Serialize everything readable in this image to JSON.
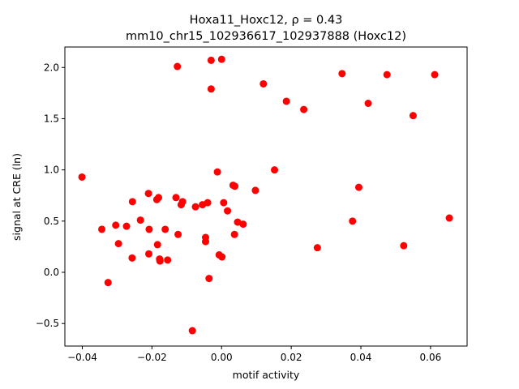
{
  "chart_data": {
    "type": "scatter",
    "title_line1": "Hoxa11_Hoxc12, ρ = 0.43",
    "title_line2": "mm10_chr15_102936617_102937888 (Hoxc12)",
    "xlabel": "motif activity",
    "ylabel": "signal at CRE (ln)",
    "xlim": [
      -0.045,
      0.0705
    ],
    "ylim": [
      -0.72,
      2.2
    ],
    "xticks": [
      -0.04,
      -0.02,
      0.0,
      0.02,
      0.04,
      0.06
    ],
    "xtick_labels": [
      "−0.04",
      "−0.02",
      "0.00",
      "0.02",
      "0.04",
      "0.06"
    ],
    "yticks": [
      -0.5,
      0.0,
      0.5,
      1.0,
      1.5,
      2.0
    ],
    "ytick_labels": [
      "−0.5",
      "0.0",
      "0.5",
      "1.0",
      "1.5",
      "2.0"
    ],
    "grid": false,
    "marker_color": "#ff0000",
    "points": [
      {
        "x": -0.0401,
        "y": 0.93
      },
      {
        "x": -0.0344,
        "y": 0.42
      },
      {
        "x": -0.0326,
        "y": -0.1
      },
      {
        "x": -0.0304,
        "y": 0.46
      },
      {
        "x": -0.0296,
        "y": 0.28
      },
      {
        "x": -0.0273,
        "y": 0.45
      },
      {
        "x": -0.0257,
        "y": 0.14
      },
      {
        "x": -0.0256,
        "y": 0.69
      },
      {
        "x": -0.0233,
        "y": 0.51
      },
      {
        "x": -0.021,
        "y": 0.77
      },
      {
        "x": -0.0208,
        "y": 0.42
      },
      {
        "x": -0.0209,
        "y": 0.18
      },
      {
        "x": -0.0186,
        "y": 0.71
      },
      {
        "x": -0.0181,
        "y": 0.73
      },
      {
        "x": -0.0184,
        "y": 0.27
      },
      {
        "x": -0.0178,
        "y": 0.13
      },
      {
        "x": -0.0177,
        "y": 0.11
      },
      {
        "x": -0.0162,
        "y": 0.42
      },
      {
        "x": -0.0155,
        "y": 0.12
      },
      {
        "x": -0.0131,
        "y": 0.73
      },
      {
        "x": -0.0127,
        "y": 2.01
      },
      {
        "x": -0.0125,
        "y": 0.37
      },
      {
        "x": -0.0116,
        "y": 0.66
      },
      {
        "x": -0.0112,
        "y": 0.69
      },
      {
        "x": -0.0084,
        "y": -0.57
      },
      {
        "x": -0.0075,
        "y": 0.64
      },
      {
        "x": -0.0055,
        "y": 0.66
      },
      {
        "x": -0.0046,
        "y": 0.34
      },
      {
        "x": -0.0046,
        "y": 0.3
      },
      {
        "x": -0.004,
        "y": 0.68
      },
      {
        "x": -0.0036,
        "y": -0.06
      },
      {
        "x": -0.003,
        "y": 2.07
      },
      {
        "x": -0.003,
        "y": 1.79
      },
      {
        "x": -0.0012,
        "y": 0.98
      },
      {
        "x": -0.0007,
        "y": 0.17
      },
      {
        "x": 0.0,
        "y": 2.08
      },
      {
        "x": 0.0001,
        "y": 0.15
      },
      {
        "x": 0.0006,
        "y": 0.68
      },
      {
        "x": 0.0017,
        "y": 0.6
      },
      {
        "x": 0.0033,
        "y": 0.85
      },
      {
        "x": 0.0038,
        "y": 0.84
      },
      {
        "x": 0.0037,
        "y": 0.37
      },
      {
        "x": 0.0046,
        "y": 0.49
      },
      {
        "x": 0.0062,
        "y": 0.47
      },
      {
        "x": 0.0097,
        "y": 0.8
      },
      {
        "x": 0.012,
        "y": 1.84
      },
      {
        "x": 0.0152,
        "y": 1.0
      },
      {
        "x": 0.0186,
        "y": 1.67
      },
      {
        "x": 0.0236,
        "y": 1.59
      },
      {
        "x": 0.0275,
        "y": 0.24
      },
      {
        "x": 0.0346,
        "y": 1.94
      },
      {
        "x": 0.0376,
        "y": 0.5
      },
      {
        "x": 0.0394,
        "y": 0.83
      },
      {
        "x": 0.0421,
        "y": 1.65
      },
      {
        "x": 0.0475,
        "y": 1.93
      },
      {
        "x": 0.0523,
        "y": 0.26
      },
      {
        "x": 0.055,
        "y": 1.53
      },
      {
        "x": 0.0612,
        "y": 1.93
      },
      {
        "x": 0.0654,
        "y": 0.53
      }
    ]
  }
}
